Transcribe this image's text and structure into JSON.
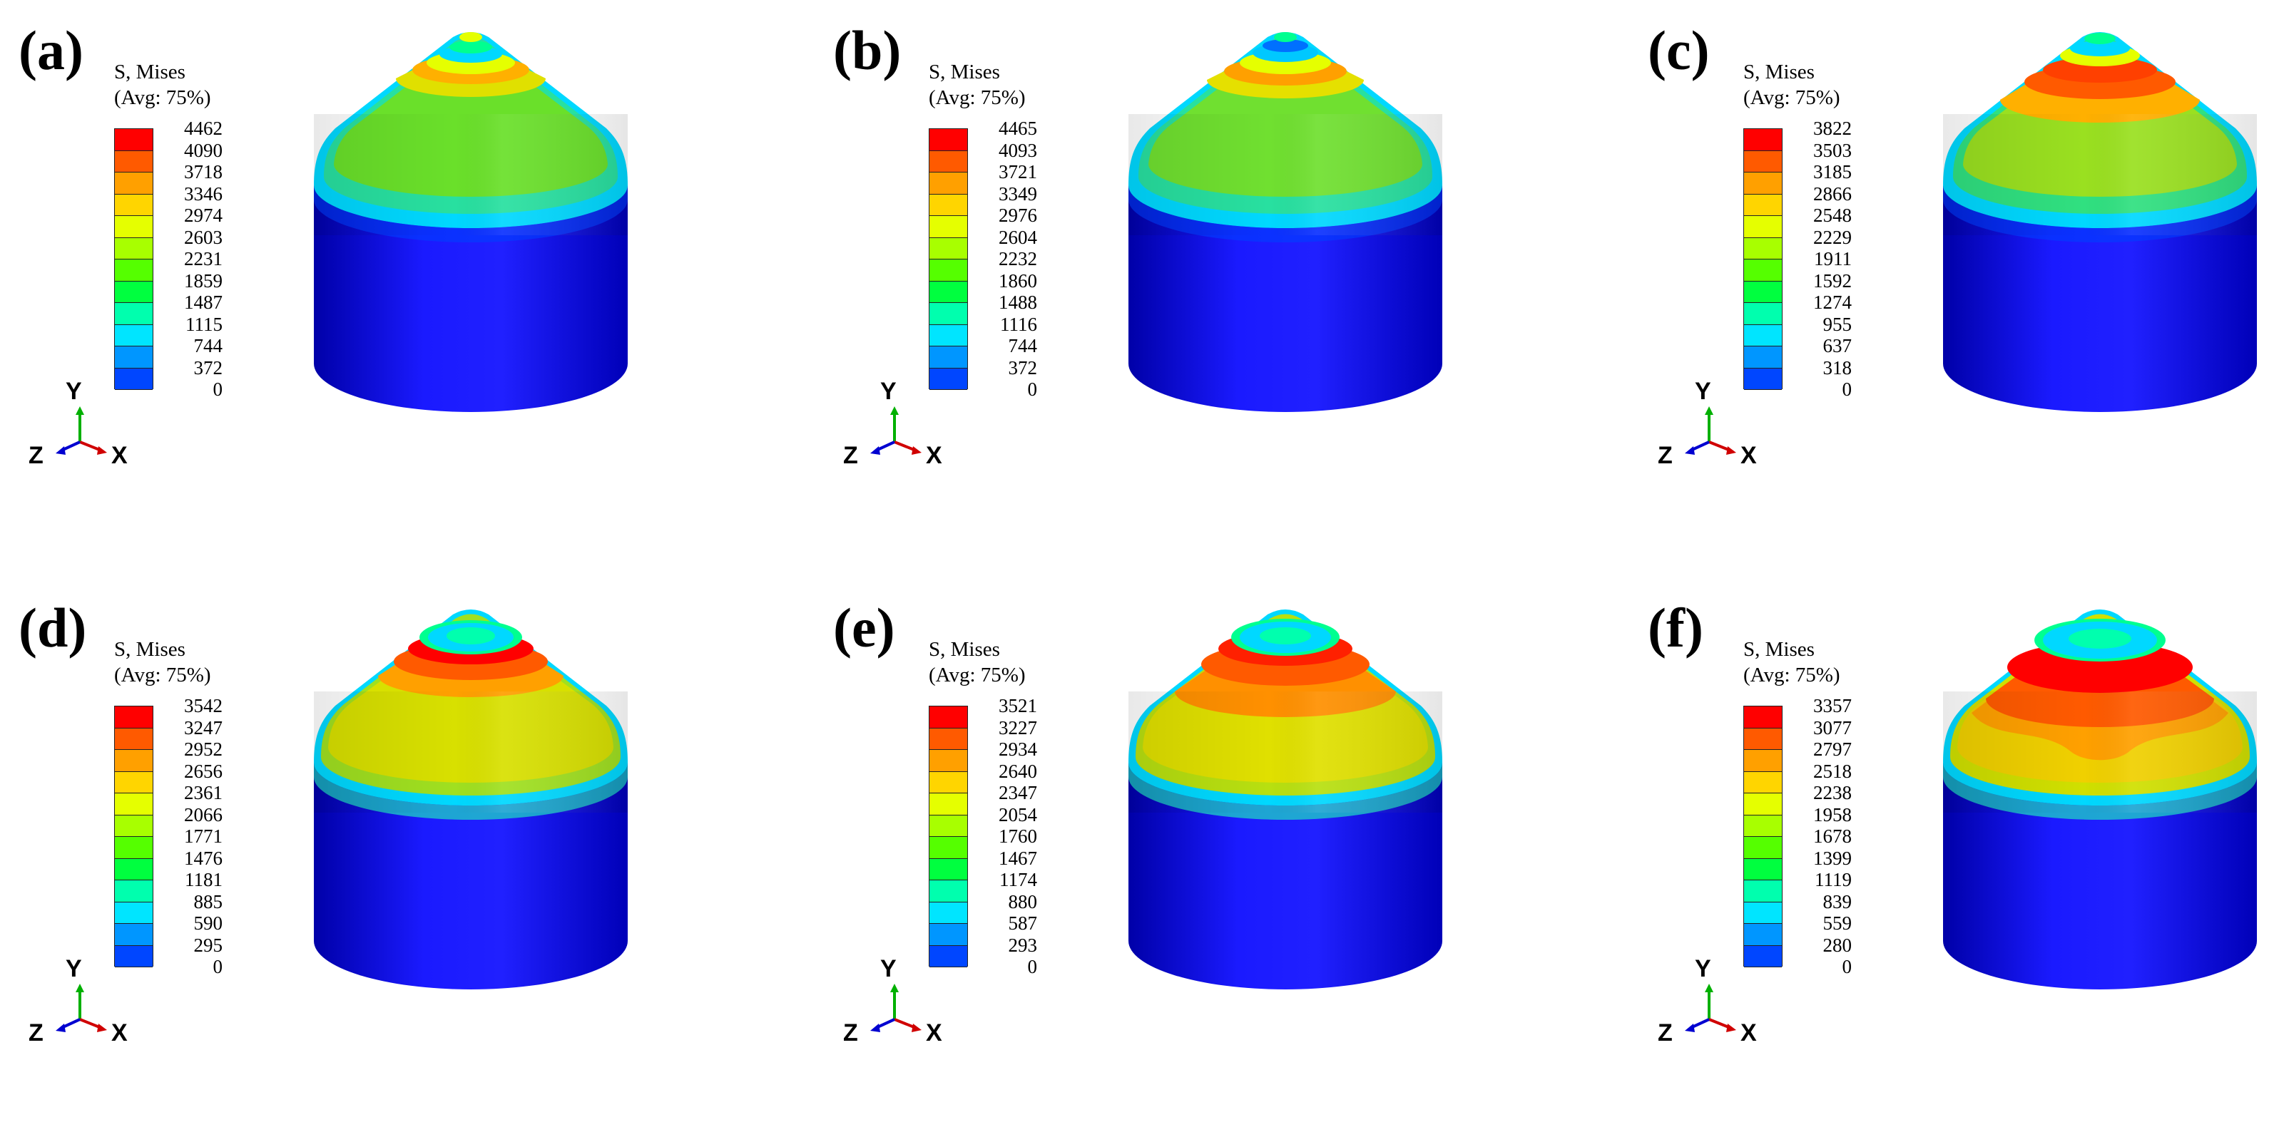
{
  "legend_title_1": "S, Mises",
  "legend_title_2": "(Avg: 75%)",
  "colors": [
    "#ff0000",
    "#ff5a00",
    "#ffa000",
    "#ffd500",
    "#e5ff00",
    "#a8ff00",
    "#55ff00",
    "#00ff3f",
    "#00ffae",
    "#00e5ff",
    "#0096ff",
    "#0046ff",
    "#0000ff"
  ],
  "axes": {
    "y": "Y",
    "z": "Z",
    "x": "X"
  },
  "panels": [
    {
      "label": "(a)",
      "ticks": [
        "4462",
        "4090",
        "3718",
        "3346",
        "2974",
        "2603",
        "2231",
        "1859",
        "1487",
        "1115",
        "744",
        "372",
        "0"
      ]
    },
    {
      "label": "(b)",
      "ticks": [
        "4465",
        "4093",
        "3721",
        "3349",
        "2976",
        "2604",
        "2232",
        "1860",
        "1488",
        "1116",
        "744",
        "372",
        "0"
      ]
    },
    {
      "label": "(c)",
      "ticks": [
        "3822",
        "3503",
        "3185",
        "2866",
        "2548",
        "2229",
        "1911",
        "1592",
        "1274",
        "955",
        "637",
        "318",
        "0"
      ]
    },
    {
      "label": "(d)",
      "ticks": [
        "3542",
        "3247",
        "2952",
        "2656",
        "2361",
        "2066",
        "1771",
        "1476",
        "1181",
        "885",
        "590",
        "295",
        "0"
      ]
    },
    {
      "label": "(e)",
      "ticks": [
        "3521",
        "3227",
        "2934",
        "2640",
        "2347",
        "2054",
        "1760",
        "1467",
        "1174",
        "880",
        "587",
        "293",
        "0"
      ]
    },
    {
      "label": "(f)",
      "ticks": [
        "3357",
        "3077",
        "2797",
        "2518",
        "2238",
        "1958",
        "1678",
        "1399",
        "1119",
        "839",
        "559",
        "280",
        "0"
      ]
    }
  ]
}
